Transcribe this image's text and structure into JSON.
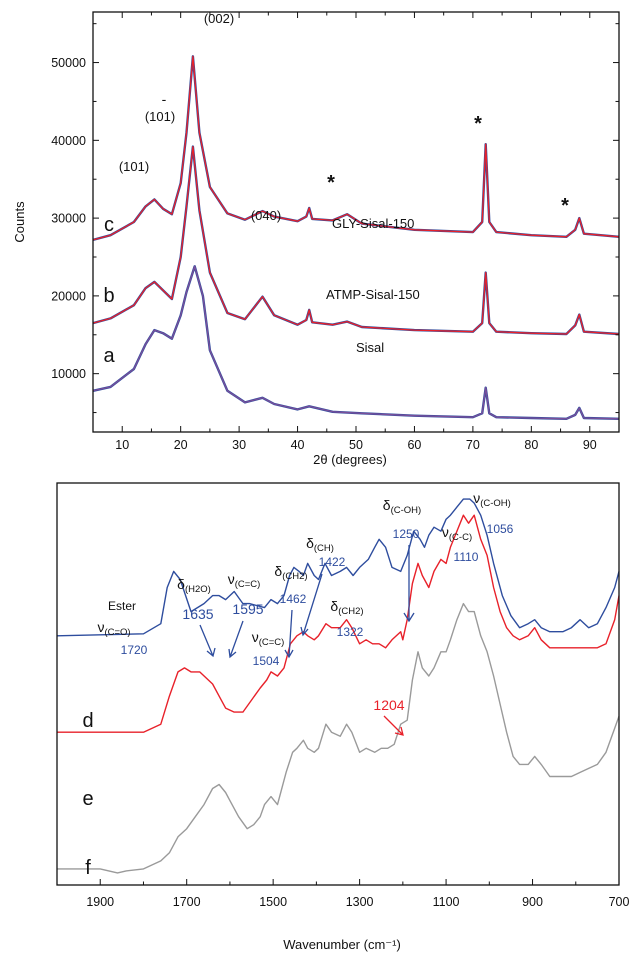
{
  "colors": {
    "blue": "#2e4d9e",
    "red": "#e8212a",
    "gray": "#9a9a9a",
    "axis": "#111111"
  },
  "chart_data": [
    {
      "type": "line",
      "xlabel": "2θ (degrees)",
      "ylabel": "Counts",
      "xlim": [
        5,
        95
      ],
      "ylim": [
        2500,
        56500
      ],
      "xticks": [
        10,
        20,
        30,
        40,
        50,
        60,
        70,
        80,
        90
      ],
      "yticks": [
        10000,
        20000,
        30000,
        40000,
        50000
      ],
      "grid": false,
      "series": [
        {
          "name": "GLY-Sisal-150",
          "letter": "c",
          "colors": [
            "#2e4d9e",
            "#e8212a"
          ],
          "x": [
            5,
            8,
            12,
            14,
            15.5,
            17,
            18.5,
            20,
            21,
            22.1,
            23.2,
            25,
            28,
            31,
            34,
            36,
            40,
            41.5,
            42,
            42.5,
            46,
            48.5,
            51,
            60,
            70,
            71.6,
            72.2,
            72.8,
            74,
            80,
            86,
            87.5,
            88.2,
            89,
            95
          ],
          "y": [
            27200,
            27800,
            29500,
            31500,
            32400,
            31200,
            30500,
            34500,
            41000,
            50800,
            41000,
            34000,
            30600,
            29800,
            30900,
            30200,
            29600,
            30200,
            31300,
            29900,
            29700,
            30500,
            29300,
            28500,
            28200,
            29500,
            39500,
            29500,
            28200,
            27800,
            27600,
            28500,
            30000,
            28000,
            27600
          ]
        },
        {
          "name": "ATMP-Sisal-150",
          "letter": "b",
          "colors": [
            "#2e4d9e",
            "#e8212a"
          ],
          "x": [
            5,
            8,
            12,
            14,
            15.5,
            17,
            18.5,
            20,
            21,
            22.1,
            23.2,
            25,
            28,
            31,
            34,
            36,
            40,
            41.5,
            42,
            42.5,
            46,
            48.5,
            51,
            60,
            70,
            71.6,
            72.2,
            72.8,
            74,
            80,
            86,
            87.5,
            88.2,
            89,
            95
          ],
          "y": [
            16500,
            17100,
            18800,
            21000,
            21800,
            20700,
            19600,
            25000,
            31500,
            39200,
            31000,
            23000,
            17800,
            17000,
            19900,
            17500,
            16300,
            16900,
            18200,
            16600,
            16300,
            16700,
            16000,
            15600,
            15400,
            16500,
            23000,
            16500,
            15400,
            15200,
            15100,
            16200,
            17600,
            15400,
            15100
          ]
        },
        {
          "name": "Sisal",
          "letter": "a",
          "colors": [
            "#2e4d9e",
            "#7a4e9a"
          ],
          "x": [
            5,
            8,
            12,
            14,
            15.5,
            17,
            18.5,
            20,
            21,
            22.4,
            23.8,
            25,
            28,
            31,
            34,
            36,
            40,
            42,
            46,
            51,
            60,
            70,
            71.6,
            72.2,
            72.8,
            74,
            80,
            86,
            87.5,
            88.2,
            89,
            95
          ],
          "y": [
            7800,
            8300,
            10600,
            13800,
            15600,
            15200,
            14500,
            17500,
            20500,
            23800,
            20000,
            13000,
            7800,
            6300,
            6900,
            6100,
            5400,
            5800,
            5100,
            4900,
            4600,
            4400,
            4900,
            8200,
            4900,
            4400,
            4300,
            4200,
            4700,
            5600,
            4300,
            4200
          ]
        }
      ],
      "annotations": {
        "p002": "(002)",
        "p101": "(101)",
        "p101bar": "(101)",
        "p101bar_mark": "-",
        "p040": "(040)",
        "star": "*",
        "label_c": "c",
        "label_b": "b",
        "label_a": "a",
        "name_c": "GLY-Sisal-150",
        "name_b": "ATMP-Sisal-150",
        "name_a": "Sisal"
      }
    },
    {
      "type": "line",
      "xlabel": "Wavenumber (cm⁻¹)",
      "ylabel": "",
      "xlim": [
        2000,
        700
      ],
      "ylim": [
        0,
        100
      ],
      "xticks": [
        1900,
        1700,
        1500,
        1300,
        1100,
        900,
        700
      ],
      "grid": false,
      "series": [
        {
          "letter": "d",
          "color": "#2e4d9e",
          "x": [
            2000,
            1800,
            1760,
            1745,
            1730,
            1715,
            1690,
            1660,
            1640,
            1625,
            1610,
            1590,
            1570,
            1555,
            1520,
            1505,
            1490,
            1475,
            1462,
            1452,
            1440,
            1430,
            1420,
            1405,
            1395,
            1380,
            1365,
            1345,
            1330,
            1315,
            1300,
            1280,
            1265,
            1255,
            1240,
            1225,
            1205,
            1190,
            1175,
            1160,
            1150,
            1140,
            1128,
            1112,
            1100,
            1090,
            1075,
            1060,
            1045,
            1035,
            1020,
            1005,
            990,
            970,
            950,
            930,
            910,
            895,
            880,
            860,
            830,
            810,
            790,
            770,
            750,
            730,
            710,
            700
          ],
          "y": [
            62,
            62.5,
            65,
            74,
            78,
            76,
            68,
            70,
            72,
            72,
            71,
            73,
            70,
            70,
            69,
            71,
            70,
            72,
            77,
            79,
            78,
            77,
            80,
            77,
            76,
            80,
            77,
            78,
            79,
            77,
            79,
            81,
            84,
            86,
            84,
            79,
            78,
            82,
            88,
            86,
            84,
            87,
            89,
            88,
            91,
            92,
            94,
            96,
            96,
            95,
            92,
            87,
            80,
            72,
            67,
            64,
            65,
            66,
            64,
            63,
            63,
            64,
            66,
            64,
            65,
            69,
            74,
            78
          ]
        },
        {
          "letter": "e",
          "color": "#e8212a",
          "x": [
            2000,
            1800,
            1760,
            1740,
            1720,
            1705,
            1690,
            1670,
            1640,
            1625,
            1610,
            1590,
            1570,
            1550,
            1530,
            1515,
            1505,
            1490,
            1475,
            1460,
            1445,
            1430,
            1420,
            1405,
            1395,
            1378,
            1365,
            1345,
            1330,
            1318,
            1300,
            1285,
            1270,
            1255,
            1240,
            1225,
            1205,
            1200,
            1190,
            1178,
            1165,
            1155,
            1140,
            1128,
            1112,
            1100,
            1090,
            1075,
            1060,
            1048,
            1035,
            1020,
            1005,
            990,
            975,
            960,
            945,
            930,
            910,
            895,
            880,
            860,
            830,
            810,
            790,
            770,
            750,
            730,
            710,
            700
          ],
          "y": [
            38,
            38,
            40,
            47,
            53,
            54,
            53,
            53,
            50,
            47,
            44,
            43,
            43,
            46,
            49,
            51,
            53,
            52,
            54,
            60,
            62,
            63,
            62,
            61,
            62,
            65,
            64,
            64,
            66,
            64,
            60,
            61,
            60,
            60,
            59,
            61,
            63,
            61,
            66,
            75,
            80,
            77,
            74,
            78,
            81,
            80,
            84,
            88,
            92,
            90,
            92,
            86,
            82,
            74,
            68,
            64,
            62,
            61,
            62,
            64,
            61,
            59,
            59,
            59,
            59,
            59,
            59,
            60,
            66,
            72
          ]
        },
        {
          "letter": "f",
          "color": "#9a9a9a",
          "x": [
            2000,
            1900,
            1860,
            1840,
            1800,
            1760,
            1740,
            1720,
            1700,
            1680,
            1660,
            1640,
            1625,
            1610,
            1600,
            1580,
            1560,
            1545,
            1530,
            1520,
            1505,
            1490,
            1470,
            1455,
            1445,
            1430,
            1420,
            1405,
            1395,
            1378,
            1365,
            1345,
            1330,
            1318,
            1300,
            1285,
            1265,
            1250,
            1235,
            1220,
            1205,
            1190,
            1178,
            1165,
            1155,
            1140,
            1128,
            1112,
            1100,
            1090,
            1075,
            1060,
            1048,
            1035,
            1020,
            1005,
            990,
            975,
            960,
            945,
            930,
            910,
            895,
            880,
            860,
            830,
            810,
            790,
            770,
            750,
            730,
            710,
            700
          ],
          "y": [
            4,
            4,
            3,
            3.5,
            4,
            6,
            8,
            12,
            14,
            17,
            20,
            24,
            25,
            23,
            21,
            17,
            14,
            15,
            17,
            20,
            22,
            20,
            28,
            33,
            34,
            36,
            34,
            33,
            34,
            40,
            38,
            37,
            40,
            38,
            33,
            34,
            33,
            34,
            34,
            35,
            40,
            41,
            51,
            58,
            54,
            52,
            54,
            58,
            58,
            61,
            66,
            70,
            68,
            68,
            62,
            58,
            52,
            45,
            38,
            32,
            30,
            30,
            32,
            30,
            27,
            27,
            27,
            28,
            29,
            30,
            33,
            39,
            42
          ]
        }
      ],
      "annotations": {
        "ester": "Ester",
        "nu": "ν",
        "delta": "δ",
        "sub_co": "(C=O)",
        "sub_h2o": "(H2O)",
        "sub_cc_double": "(C=C)",
        "sub_ch2": "(CH2)",
        "sub_ch": "(CH)",
        "sub_coh": "(C-OH)",
        "sub_cc": "(C-C)",
        "w1720": "1720",
        "w1635": "1635",
        "w1595": "1595",
        "w1504": "1504",
        "w1462": "1462",
        "w1422": "1422",
        "w1322": "1322",
        "w1250": "1250",
        "w1110": "1110",
        "w1056": "1056",
        "w1204": "1204",
        "label_d": "d",
        "label_e": "e",
        "label_f": "f"
      }
    }
  ]
}
